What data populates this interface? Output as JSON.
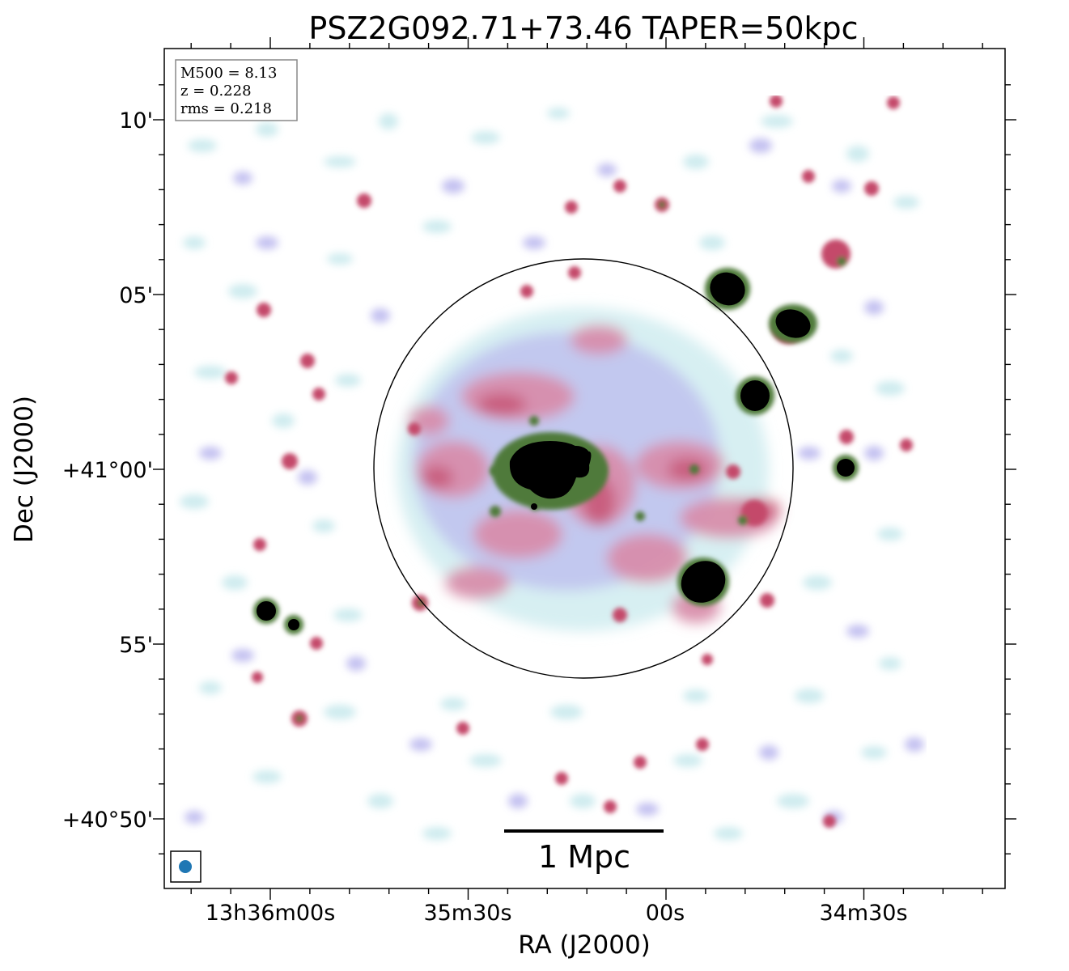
{
  "title": "PSZ2G092.71+73.46 TAPER=50kpc",
  "xlabel": "RA (J2000)",
  "ylabel": "Dec (J2000)",
  "ra_ticks": [
    "13h36m00s",
    "35m30s",
    "00s",
    "34m30s"
  ],
  "dec_ticks": [
    "10'",
    "05'",
    "+41°00'",
    "55'",
    "+40°50'"
  ],
  "info_box": {
    "m500": "M500 = 8.13",
    "z": "z = 0.228",
    "rms": "rms = 0.218"
  },
  "scale_bar": {
    "label": "1 Mpc"
  },
  "colors": {
    "faint_cyan": "#c6e8ec",
    "lavender": "#b9b6ee",
    "pink": "#d88aa8",
    "crimson": "#c4496a",
    "green": "#4f7a3a",
    "black": "#000000",
    "beam": "#1f77b4"
  }
}
